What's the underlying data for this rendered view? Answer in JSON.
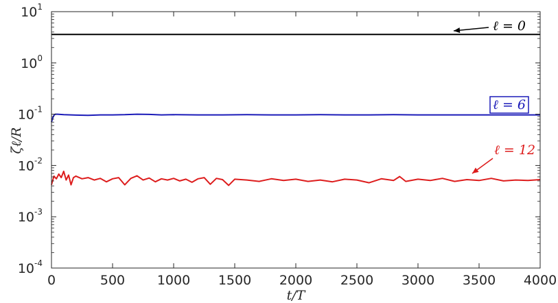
{
  "chart_data": {
    "type": "line",
    "title": "",
    "xlabel": "t/T",
    "ylabel": "ζℓ/R",
    "xlim": [
      0,
      4000
    ],
    "ylim": [
      0.0001,
      10
    ],
    "yscale": "log",
    "grid": false,
    "x_ticks": [
      0,
      500,
      1000,
      1500,
      2000,
      2500,
      3000,
      3500,
      4000
    ],
    "y_ticks": [
      {
        "value": 0.0001,
        "base": "10",
        "exp": "-4"
      },
      {
        "value": 0.001,
        "base": "10",
        "exp": "-3"
      },
      {
        "value": 0.01,
        "base": "10",
        "exp": "-2"
      },
      {
        "value": 0.1,
        "base": "10",
        "exp": "-1"
      },
      {
        "value": 1,
        "base": "10",
        "exp": "0"
      },
      {
        "value": 10,
        "base": "10",
        "exp": "1"
      }
    ],
    "series": [
      {
        "color": "#000000",
        "x": [
          0,
          500,
          1000,
          1500,
          2000,
          2500,
          3000,
          3500,
          4000
        ],
        "y": [
          3.6,
          3.6,
          3.6,
          3.6,
          3.6,
          3.6,
          3.6,
          3.6,
          3.6
        ]
      },
      {
        "color": "#1a1ab8",
        "x": [
          0,
          10,
          20,
          30,
          50,
          100,
          200,
          300,
          400,
          500,
          600,
          700,
          800,
          900,
          1000,
          1200,
          1400,
          1600,
          1800,
          2000,
          2200,
          2400,
          2600,
          2800,
          3000,
          3200,
          3400,
          3600,
          3800,
          4000
        ],
        "y": [
          0.07,
          0.085,
          0.095,
          0.1,
          0.1,
          0.098,
          0.096,
          0.095,
          0.097,
          0.097,
          0.098,
          0.1,
          0.099,
          0.097,
          0.098,
          0.097,
          0.097,
          0.098,
          0.097,
          0.097,
          0.098,
          0.097,
          0.097,
          0.098,
          0.097,
          0.097,
          0.097,
          0.097,
          0.097,
          0.097
        ]
      },
      {
        "color": "#dd1c1c",
        "x": [
          0,
          20,
          40,
          60,
          80,
          100,
          120,
          140,
          160,
          180,
          200,
          250,
          300,
          350,
          400,
          450,
          500,
          550,
          600,
          650,
          700,
          750,
          800,
          850,
          900,
          950,
          1000,
          1050,
          1100,
          1150,
          1200,
          1250,
          1300,
          1350,
          1400,
          1450,
          1500,
          1600,
          1700,
          1800,
          1900,
          2000,
          2100,
          2200,
          2300,
          2400,
          2500,
          2600,
          2700,
          2800,
          2850,
          2900,
          3000,
          3100,
          3200,
          3300,
          3400,
          3500,
          3600,
          3700,
          3800,
          3900,
          4000
        ],
        "y": [
          0.0042,
          0.0062,
          0.0055,
          0.0068,
          0.0058,
          0.0077,
          0.0052,
          0.0065,
          0.0042,
          0.0058,
          0.0062,
          0.0055,
          0.0058,
          0.0052,
          0.0056,
          0.0048,
          0.0055,
          0.0058,
          0.0042,
          0.0056,
          0.0063,
          0.0052,
          0.0057,
          0.0048,
          0.0055,
          0.0052,
          0.0056,
          0.005,
          0.0054,
          0.0047,
          0.0055,
          0.0058,
          0.0043,
          0.0056,
          0.0053,
          0.0041,
          0.0054,
          0.0052,
          0.0049,
          0.0055,
          0.0051,
          0.0054,
          0.0049,
          0.0052,
          0.0048,
          0.0054,
          0.0052,
          0.0046,
          0.0055,
          0.0051,
          0.0061,
          0.0049,
          0.0054,
          0.0051,
          0.0056,
          0.0049,
          0.0053,
          0.0051,
          0.0056,
          0.005,
          0.0052,
          0.0051,
          0.0053
        ]
      }
    ],
    "annotations": [
      {
        "label_var": "ℓ",
        "label_rest": " = 0",
        "color": "#000000",
        "boxed": false,
        "arrow": true
      },
      {
        "label_var": "ℓ",
        "label_rest": " = 6",
        "color": "#1a1ab8",
        "boxed": true,
        "arrow": false
      },
      {
        "label_var": "ℓ",
        "label_rest": " = 12",
        "color": "#dd1c1c",
        "boxed": false,
        "arrow": true
      }
    ]
  }
}
